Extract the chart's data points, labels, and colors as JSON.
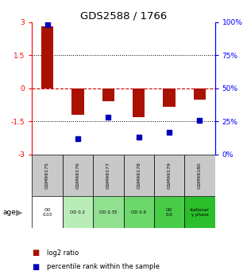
{
  "title": "GDS2588 / 1766",
  "samples": [
    "GSM99175",
    "GSM99176",
    "GSM99177",
    "GSM99178",
    "GSM99179",
    "GSM99180"
  ],
  "log2_ratio": [
    2.8,
    -1.2,
    -0.6,
    -1.3,
    -0.85,
    -0.5
  ],
  "percentile_rank": [
    98,
    12,
    28,
    13,
    17,
    26
  ],
  "age_labels": [
    "OD\n0.03",
    "OD 0.2",
    "OD 0.35",
    "OD 0.6",
    "OD\n0.9",
    "stationar\ny phase"
  ],
  "age_colors": [
    "#ffffff",
    "#b8edb8",
    "#90e090",
    "#6cd86c",
    "#48cc48",
    "#2bbf2b"
  ],
  "ylim": [
    -3,
    3
  ],
  "yticks_left": [
    -3,
    -1.5,
    0,
    1.5,
    3
  ],
  "yticks_right": [
    0,
    25,
    50,
    75,
    100
  ],
  "bar_color": "#aa1100",
  "dot_color": "#0000bb",
  "hline_color": "#cc0000",
  "dotline_color": "#000000",
  "bg_color": "#ffffff",
  "sample_bg": "#c8c8c8",
  "legend_red": "#aa1100",
  "legend_blue": "#0000bb"
}
